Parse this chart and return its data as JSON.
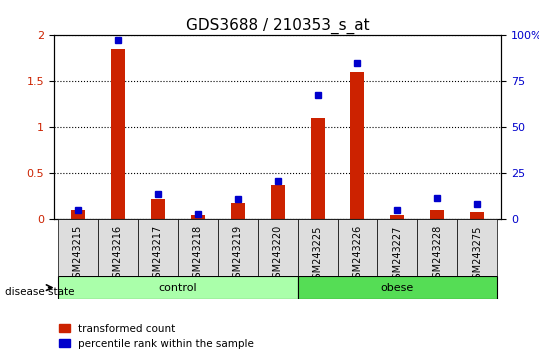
{
  "title": "GDS3688 / 210353_s_at",
  "samples": [
    "GSM243215",
    "GSM243216",
    "GSM243217",
    "GSM243218",
    "GSM243219",
    "GSM243220",
    "GSM243225",
    "GSM243226",
    "GSM243227",
    "GSM243228",
    "GSM243275"
  ],
  "red_values": [
    0.1,
    1.85,
    0.22,
    0.05,
    0.18,
    0.38,
    1.1,
    1.6,
    0.05,
    0.1,
    0.08
  ],
  "blue_values": [
    0.1,
    1.95,
    0.28,
    0.06,
    0.22,
    0.42,
    1.35,
    1.7,
    0.1,
    0.23,
    0.17
  ],
  "groups": [
    {
      "label": "control",
      "start": 0,
      "end": 5,
      "color": "#90EE90"
    },
    {
      "label": "obese",
      "start": 6,
      "end": 10,
      "color": "#32CD32"
    }
  ],
  "ylim_left": [
    0,
    2
  ],
  "ylim_right": [
    0,
    100
  ],
  "yticks_left": [
    0,
    0.5,
    1.0,
    1.5,
    2.0
  ],
  "ytick_labels_left": [
    "0",
    "0.5",
    "1",
    "1.5",
    "2"
  ],
  "yticks_right": [
    0,
    25,
    50,
    75,
    100
  ],
  "ytick_labels_right": [
    "0",
    "25",
    "50",
    "75",
    "100%"
  ],
  "bar_width": 0.35,
  "legend_red": "transformed count",
  "legend_blue": "percentile rank within the sample",
  "disease_state_label": "disease state",
  "red_color": "#CC2200",
  "blue_color": "#0000CC",
  "bg_plot": "#FFFFFF",
  "tick_area_bg": "#DDDDDD",
  "group_control_color": "#AAFFAA",
  "group_obese_color": "#55DD55",
  "title_fontsize": 11,
  "axis_fontsize": 8
}
